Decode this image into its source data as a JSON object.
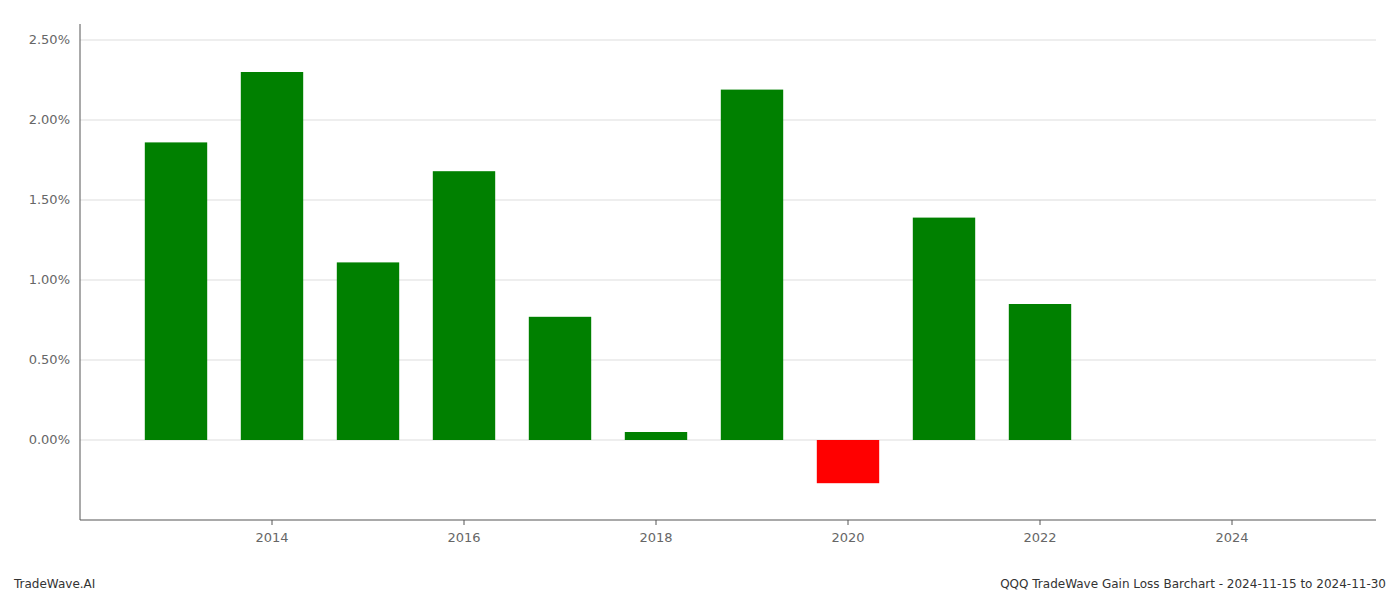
{
  "chart_data": {
    "type": "bar",
    "x": [
      2013,
      2014,
      2015,
      2016,
      2017,
      2018,
      2019,
      2020,
      2021,
      2022
    ],
    "values": [
      0.0186,
      0.023,
      0.0111,
      0.0168,
      0.0077,
      0.0005,
      0.0219,
      -0.0027,
      0.0139,
      0.0085
    ],
    "colors": [
      "#008000",
      "#008000",
      "#008000",
      "#008000",
      "#008000",
      "#008000",
      "#008000",
      "#ff0000",
      "#008000",
      "#008000"
    ],
    "xlim": [
      2012.0,
      2025.5
    ],
    "xticks": [
      2014,
      2016,
      2018,
      2020,
      2022,
      2024
    ],
    "ylim": [
      -0.005,
      0.026
    ],
    "yticks": [
      {
        "value": 0.0,
        "label": "0.00%"
      },
      {
        "value": 0.005,
        "label": "0.50%"
      },
      {
        "value": 0.01,
        "label": "1.00%"
      },
      {
        "value": 0.015,
        "label": "1.50%"
      },
      {
        "value": 0.02,
        "label": "2.00%"
      },
      {
        "value": 0.025,
        "label": "2.50%"
      }
    ],
    "grid": true,
    "annotations": [
      "TradeWave.AI",
      "QQQ TradeWave Gain Loss Barchart - 2024-11-15 to 2024-11-30"
    ]
  }
}
